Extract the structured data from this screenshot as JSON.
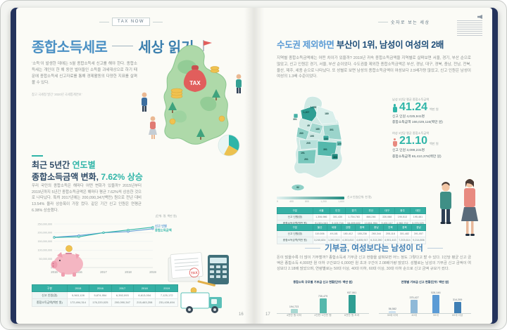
{
  "left_page": {
    "tab": "TAX NOW",
    "title": {
      "part1": "종합소득세로",
      "part2": "세상 읽기"
    },
    "intro": "‘소득’이 발생한 데에는 5월 종합소득세 신고를 해야 한다. 종합소득세는 개인이 한 해 동안 벌어들인 소득을 과세대상으로 하기 때문에 종합소득세 신고자료를 통해 경제활동의 다양한 지표를 살펴볼 수 있다.",
    "source_note": "참고 국세청 발간 ‘2020년 국세통계연보’",
    "illustration": {
      "bag_label": "TAX",
      "doc_stamp": "TAX"
    },
    "section": {
      "heading": {
        "l1a": "최근 5년간 ",
        "l1b": "연도별",
        "l2a": "종합소득금액 변화, ",
        "l2b": "7.62% 상승"
      },
      "body": "우리 국민의 종합소득은 해마다 어떤 변화가 있을까? 2015년부터 2019년까지 5년간 종합소득금액은 해마다 평균 7.62%씩 상승한 것으로 나타났다. 특히 2017년에는 200,090,347(백만) 원으로 전년 대비 13.54% 올라 상승폭이 가장 컸다. 같은 기간 신고 인원은 연평균 6.38% 상승했다.",
      "table": {
        "headers": [
          "구분",
          "2015",
          "2016",
          "2017",
          "2018",
          "2019"
        ],
        "rows": [
          [
            "신고 인원(명)",
            "5,563,128",
            "5,874,954",
            "6,392,093",
            "6,613,004",
            "7,125,172"
          ],
          [
            "종합소득금액(백만 원)",
            "172,494,314",
            "176,220,025",
            "200,090,347",
            "215,463,208",
            "231,439,494"
          ]
        ]
      }
    },
    "chart": {
      "type": "line",
      "unit_label": "(단위: 명, 백만 원)",
      "x": [
        "2015",
        "2016",
        "2017",
        "2018",
        "2019"
      ],
      "yticks": [
        "0",
        "50,000,000",
        "100,000,000",
        "150,000,000",
        "200,000,000",
        "250,000,000"
      ],
      "series": [
        {
          "name": "신고 인원",
          "color": "#5b9bd5",
          "ymax": 8000000,
          "values": [
            5563128,
            5874954,
            6392093,
            6613004,
            7125172
          ]
        },
        {
          "name": "종합소득금액",
          "color": "#2fb5a8",
          "ymax": 250000000,
          "values": [
            172494314,
            176220025,
            200090347,
            215463208,
            231439494
          ]
        }
      ]
    },
    "page_number": "16"
  },
  "right_page": {
    "tab": "숫자로 보는 세상",
    "section1": {
      "heading": {
        "a": "수도권 제외하면 ",
        "b": "부산이 1위",
        "c": ", 남성이 여성의 2배"
      },
      "body": "지역별 종합소득금액에는 어떤 차이가 있을까? 2019년 귀속 종합소득금액을 지역별로 살펴보면 서울, 경기, 부산 순으로 많았고, 신고 인원은 경기, 서울, 부산 순이었다. 수도권을 제외한 종합소득금액은 부산, 경남, 대구, 경북, 충남, 전남, 전북, 울산, 제주, 세종 순으로 나타났다. 또 성별로 보면 남성의 종합소득금액이 여성보다 2.5배가량 많았고, 신고 인원은 남성이 여성의 1.3배 수준이었다.",
      "stats": [
        {
          "caption": "남성 1인당 평균 종합소득금액",
          "value": "41.24",
          "unit": "백만 원",
          "line1": "신고 인원 4,025,941명",
          "line2": "종합소득금액 166,029,116(백만 원)"
        },
        {
          "caption": "여성 1인당 평균 종합소득금액",
          "value": "21.10",
          "unit": "백만 원",
          "line1": "신고 인원 3,099,231명",
          "line2": "종합소득금액 65,410,378(백만 원)"
        }
      ],
      "map": {
        "legend_caption": "신고 인원(단위: 천 명)",
        "legend_ticks": [
          "0",
          "400",
          "800",
          "1,200",
          "1,600"
        ],
        "regions": [
          {
            "name": "서울",
            "value": "1,307"
          },
          {
            "name": "인천",
            "value": "301"
          },
          {
            "name": "경기",
            "value": "1,755"
          },
          {
            "name": "강원",
            "value": "180"
          },
          {
            "name": "세종",
            "value": "49"
          },
          {
            "name": "충북",
            "value": "185"
          },
          {
            "name": "충남",
            "value": "260"
          },
          {
            "name": "대전",
            "value": "195"
          },
          {
            "name": "경북",
            "value": "301"
          },
          {
            "name": "대구",
            "value": "330"
          },
          {
            "name": "울산",
            "value": "120"
          },
          {
            "name": "부산",
            "value": "468"
          },
          {
            "name": "경남",
            "value": "391"
          },
          {
            "name": "전북",
            "value": "205"
          },
          {
            "name": "광주",
            "value": "191"
          },
          {
            "name": "전남",
            "value": "201"
          },
          {
            "name": "제주",
            "value": "92"
          }
        ]
      },
      "tables": [
        {
          "headers": [
            "구분",
            "서울",
            "인천",
            "경기",
            "부산",
            "대구",
            "광주",
            "대전"
          ],
          "rows": [
            [
              "신고 인원(명)",
              "1,306,986",
              "301,430",
              "1,754,763",
              "468,246",
              "330,088",
              "190,513",
              "195,481"
            ],
            [
              "종합소득금액(백만 원)",
              "91,501,543",
              "9,103,716",
              "54,695,602",
              "13,811,954",
              "9,401,117",
              "4,982,702",
              "5,375,329"
            ]
          ]
        },
        {
          "headers": [
            "구분",
            "울산",
            "세종",
            "강원",
            "충북",
            "충남",
            "전북",
            "경북",
            "경남"
          ],
          "rows": [
            [
              "신고 인원(명)",
              "119,506",
              "49,181",
              "180,412",
              "185,236",
              "260,344",
              "205,118",
              "301,482",
              "391,057"
            ],
            [
              "종합소득금액(백만 원)",
              "3,240,824",
              "1,392,503",
              "4,303,810",
              "4,605,917",
              "6,313,280",
              "4,901,443",
              "7,203,614",
              "9,214,806"
            ]
          ]
        }
      ]
    },
    "section2": {
      "heading": "기부금, 여성보다는 남성이 더",
      "body": "돈이 많을수록 더 많이 기부할까? 종합소득세 기부금 신고 현황을 살펴보면 어느 정도 그렇다고 할 수 있다. 1인당 평균 신고 금액은 종합소득 4,000만 원 이하 구간보다 6,000만 원 초과 구간이 2.08배가량 많았다. 성별로는 남성의 기부금 신고 금액이 여성보다 2.18배 많았으며, 연령별로는 50대 이상, 40대 이하, 60대 이상, 30대 이하 순으로 신고 금액 규모가 컸다.",
      "charts": [
        {
          "type": "bar",
          "caption": "종합소득 규모별 기부금 신고 현황(단위: 백만 원)",
          "categories": [
            "4천만 원 이하",
            "4천만~6천만 원",
            "6천만 원 초과"
          ],
          "values": [
            194723,
            735479,
            937061
          ],
          "colors": [
            "#a8d8d2",
            "#56b8ac",
            "#2f9e93"
          ]
        },
        {
          "type": "bar",
          "caption": "연령별 기부금 신고 현황(단위: 백만 원)",
          "categories": [
            "30대 이하",
            "40대",
            "50대",
            "60대 이상"
          ],
          "values": [
            56582,
            375427,
            528146,
            314209
          ],
          "colors": [
            "#cfe2f0",
            "#8fb9d8",
            "#5b9bd5",
            "#3f7fb5"
          ]
        }
      ]
    },
    "page_number": "17"
  }
}
